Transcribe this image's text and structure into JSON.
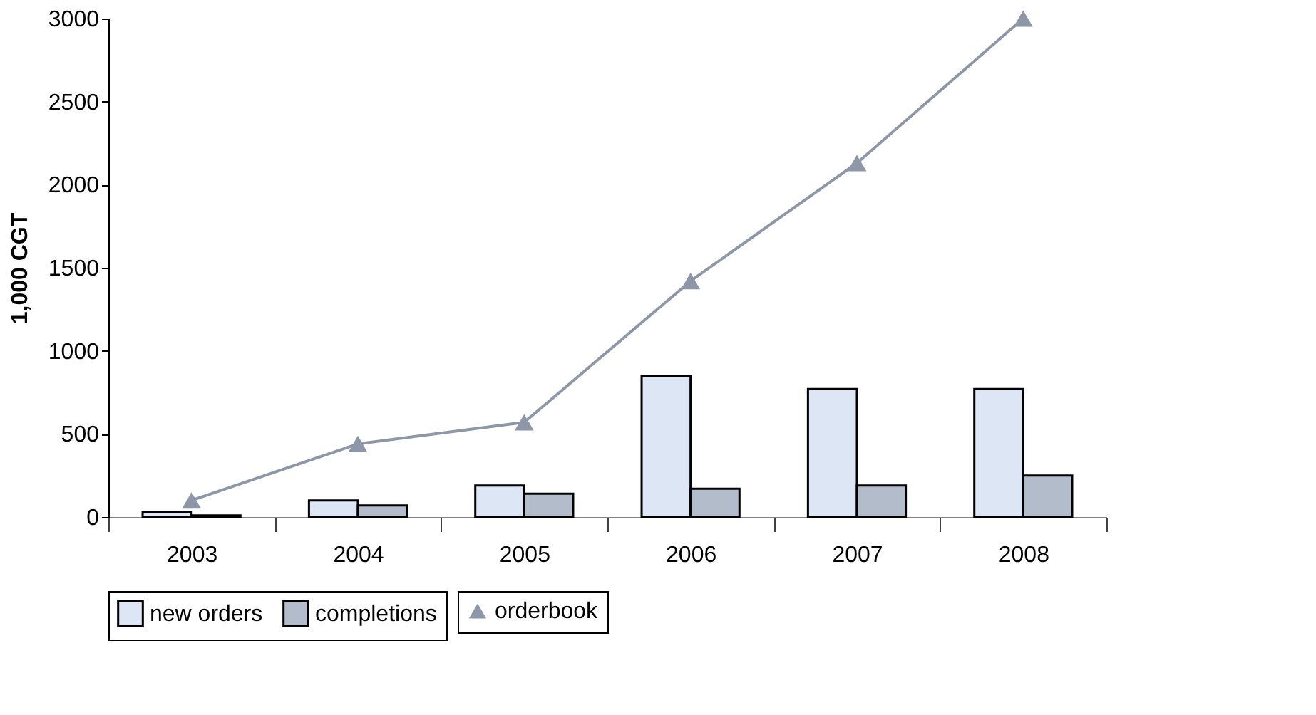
{
  "chart_data": {
    "type": "bar",
    "ylabel": "1,000 CGT",
    "categories": [
      "2003",
      "2004",
      "2005",
      "2006",
      "2007",
      "2008"
    ],
    "series": [
      {
        "name": "new orders",
        "color": "#dce6f4",
        "values": [
          30,
          100,
          190,
          850,
          770,
          770
        ]
      },
      {
        "name": "completions",
        "color": "#b3bccb",
        "values": [
          10,
          70,
          140,
          170,
          190,
          250
        ]
      },
      {
        "name": "orderbook",
        "type": "line",
        "color": "#8d97a8",
        "marker": "triangle",
        "line_style": "solid",
        "values": [
          100,
          440,
          570,
          1420,
          2130,
          3000
        ]
      }
    ],
    "ylim": [
      0,
      3000
    ],
    "yticks": [
      0,
      500,
      1000,
      1500,
      2000,
      2500,
      3000
    ],
    "grid": false,
    "legend": "bottom"
  }
}
